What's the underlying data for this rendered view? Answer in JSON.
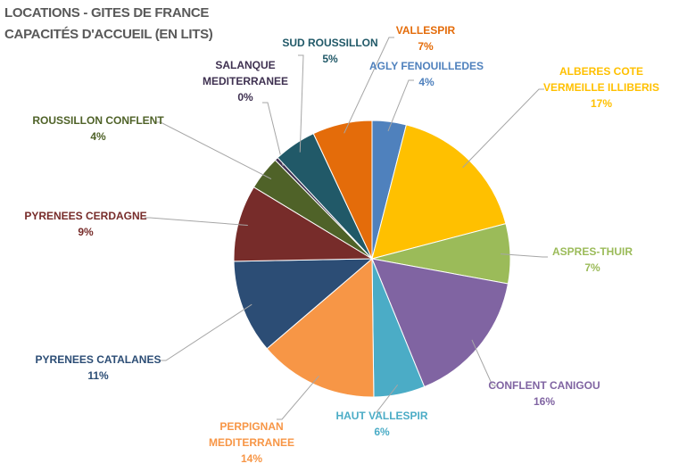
{
  "chart_data": {
    "type": "pie",
    "title": [
      "LOCATIONS - GITES DE FRANCE",
      "CAPACITÉS D'ACCUEIL (EN LITS)"
    ],
    "start": "12 o'clock",
    "direction": "clockwise",
    "slices": [
      {
        "label": [
          "AGLY FENOUILLEDES"
        ],
        "value": 4,
        "pct": "4%",
        "color": "#4f81bd"
      },
      {
        "label": [
          "ALBERES COTE",
          "VERMEILLE ILLIBERIS"
        ],
        "value": 17,
        "pct": "17%",
        "color": "#ffc000"
      },
      {
        "label": [
          "ASPRES-THUIR"
        ],
        "value": 7,
        "pct": "7%",
        "color": "#9bbb59"
      },
      {
        "label": [
          "CONFLENT CANIGOU"
        ],
        "value": 16,
        "pct": "16%",
        "color": "#8064a2"
      },
      {
        "label": [
          "HAUT VALLESPIR"
        ],
        "value": 6,
        "pct": "6%",
        "color": "#4bacc6"
      },
      {
        "label": [
          "PERPIGNAN",
          "MEDITERRANEE"
        ],
        "value": 14,
        "pct": "14%",
        "color": "#f79646"
      },
      {
        "label": [
          "PYRENEES CATALANES"
        ],
        "value": 11,
        "pct": "11%",
        "color": "#2c4d75"
      },
      {
        "label": [
          "PYRENEES CERDAGNE"
        ],
        "value": 9,
        "pct": "9%",
        "color": "#772c2a"
      },
      {
        "label": [
          "ROUSSILLON CONFLENT"
        ],
        "value": 4,
        "pct": "4%",
        "color": "#4f6228"
      },
      {
        "label": [
          "SALANQUE",
          "MEDITERRANEE"
        ],
        "value": 0.4,
        "pct": "0%",
        "color": "#3f3151"
      },
      {
        "label": [
          "SUD ROUSSILLON"
        ],
        "value": 5,
        "pct": "5%",
        "color": "#215968"
      },
      {
        "label": [
          "VALLESPIR"
        ],
        "value": 7,
        "pct": "7%",
        "color": "#e46c0a"
      }
    ]
  }
}
